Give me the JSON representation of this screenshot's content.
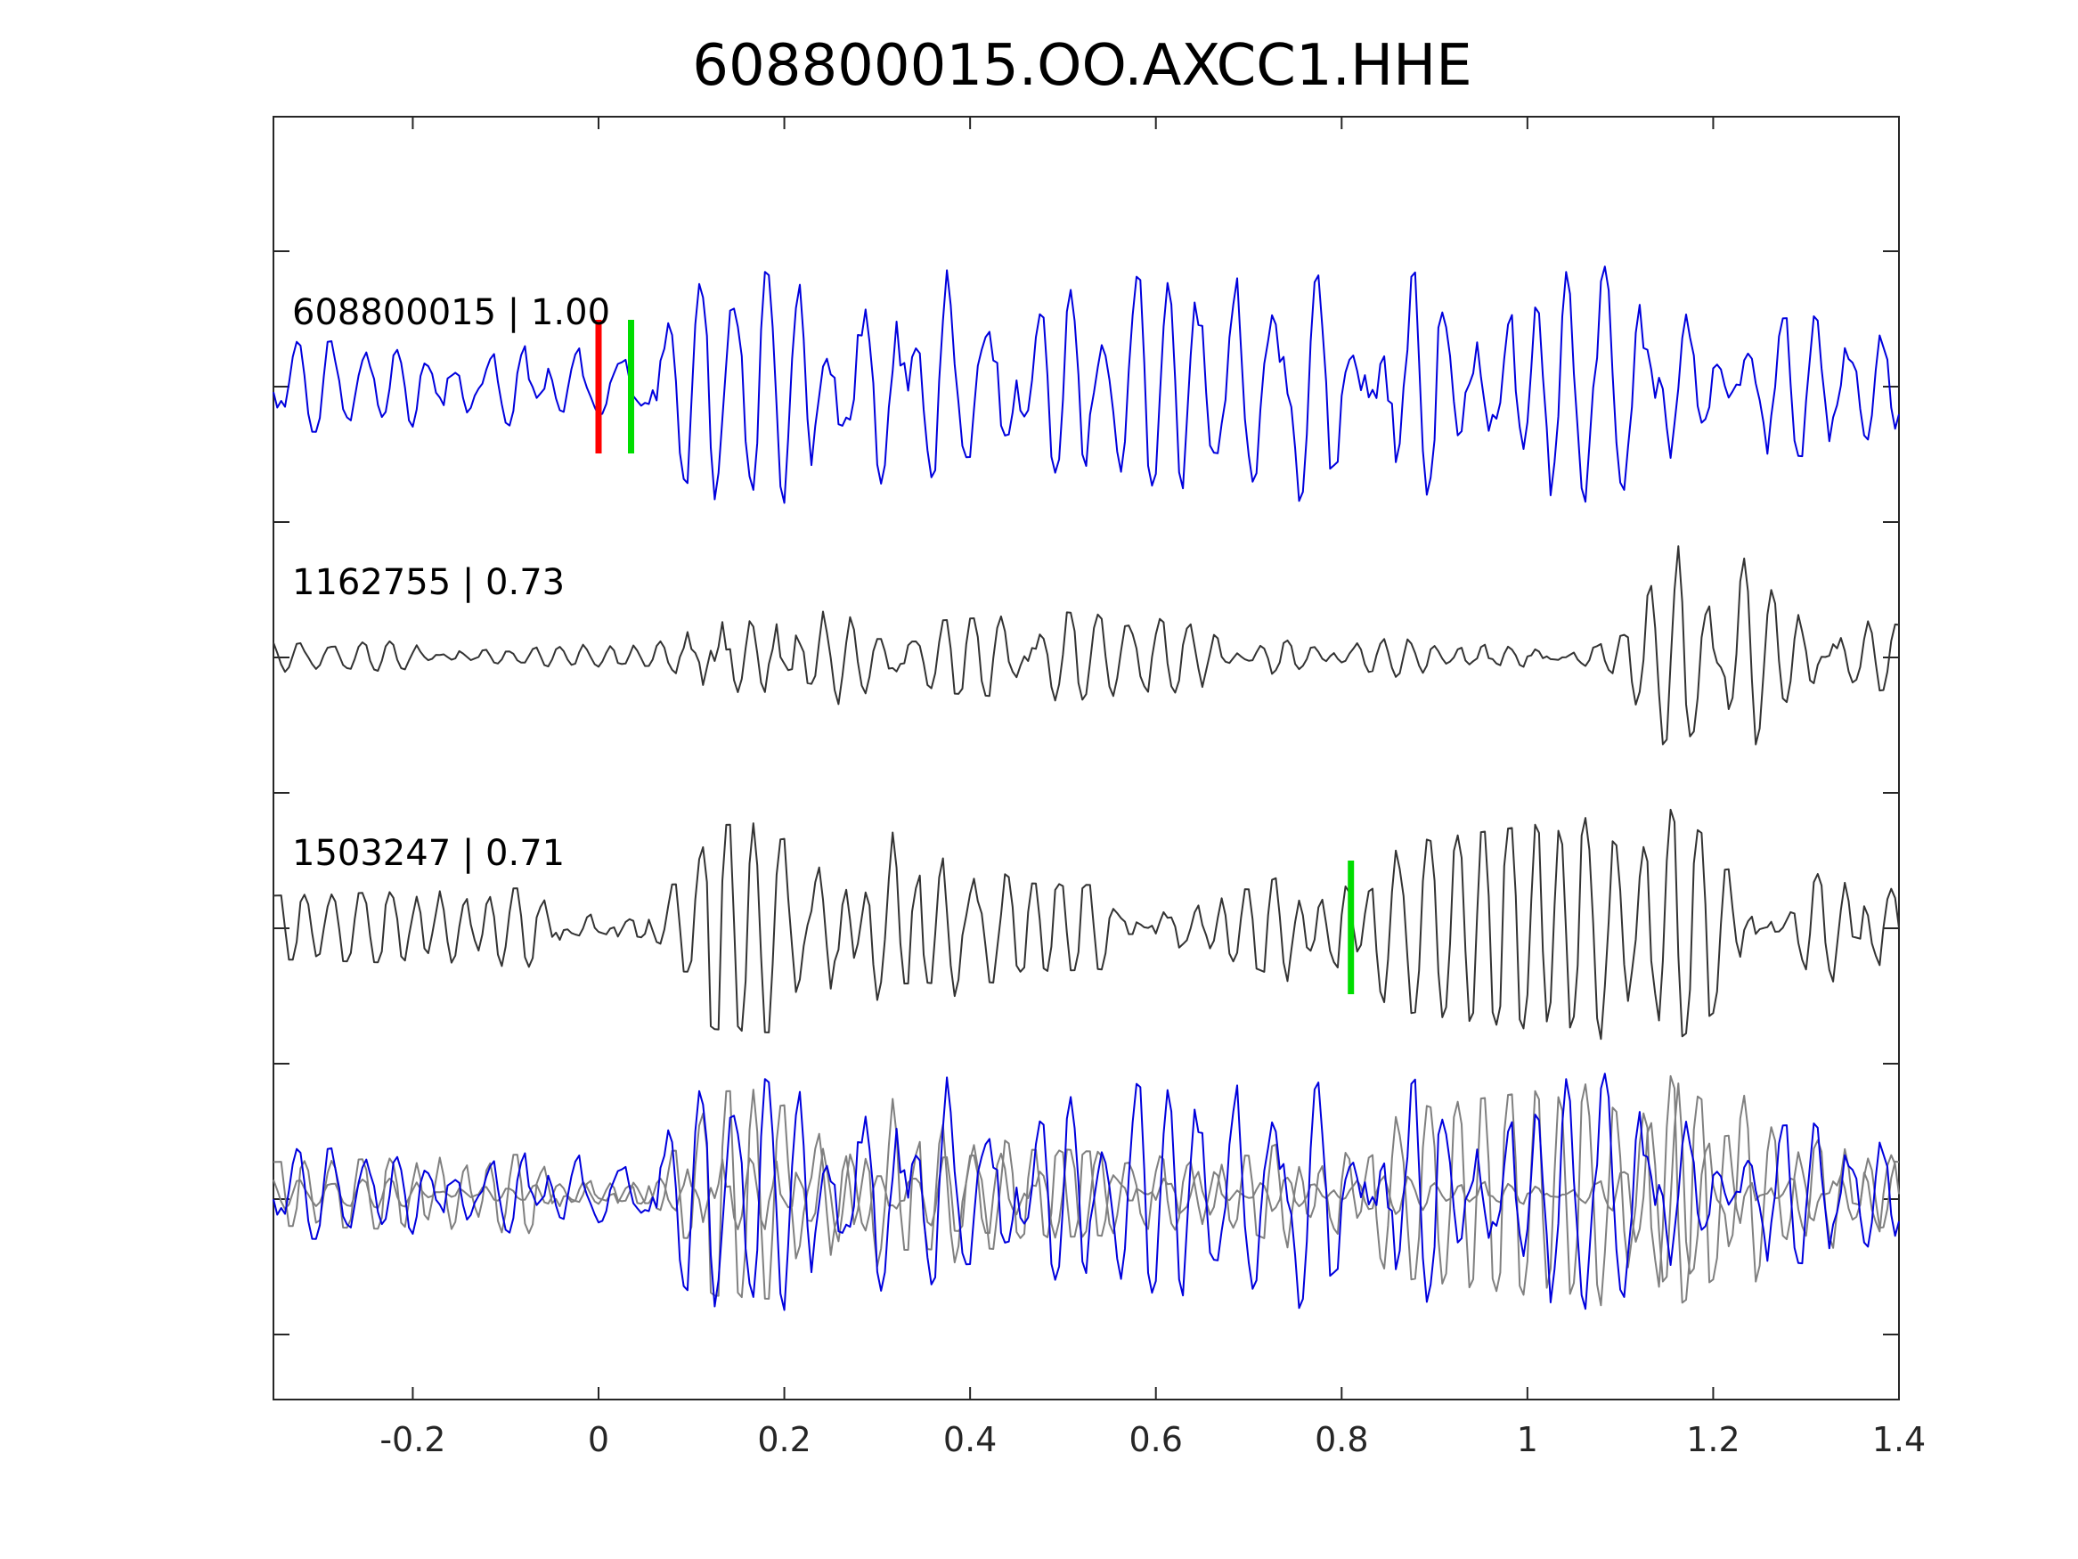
{
  "chart_data": {
    "type": "line",
    "title": "608800015.OO.AXCC1.HHE",
    "xlim": [
      -0.35,
      1.4
    ],
    "x_ticks": [
      "-0.2",
      "0",
      "0.2",
      "0.4",
      "0.6",
      "0.8",
      "1",
      "1.2",
      "1.4"
    ],
    "x_tick_values": [
      -0.2,
      0,
      0.2,
      0.4,
      0.6,
      0.8,
      1,
      1.2,
      1.4
    ],
    "y_ticks_unlabeled": 9,
    "grid": false,
    "colors": {
      "main": "#0000dd",
      "reference": "#333333",
      "overlay_gray": "#808080",
      "pick_red": "#ff0000",
      "pick_green": "#00dd00"
    },
    "traces": [
      {
        "label": "608800015 | 1.00",
        "name": "608800015",
        "correlation": 1.0,
        "color": "#0000dd",
        "seed": 11,
        "amplitude": 0.95,
        "envelope": [
          [
            -0.35,
            0.35
          ],
          [
            0.05,
            0.4
          ],
          [
            0.12,
            0.95
          ],
          [
            0.5,
            0.9
          ],
          [
            0.9,
            0.9
          ],
          [
            1.1,
            0.95
          ],
          [
            1.2,
            0.5
          ],
          [
            1.4,
            0.6
          ]
        ],
        "picks": [
          {
            "x": 0.0,
            "color": "#ff0000"
          },
          {
            "x": 0.035,
            "color": "#00dd00"
          }
        ]
      },
      {
        "label": "1162755 | 0.73",
        "name": "1162755",
        "correlation": 0.73,
        "color": "#333333",
        "seed": 23,
        "amplitude": 0.95,
        "envelope": [
          [
            -0.35,
            0.12
          ],
          [
            0.05,
            0.12
          ],
          [
            0.09,
            0.25
          ],
          [
            0.13,
            0.75
          ],
          [
            0.19,
            0.6
          ],
          [
            0.3,
            0.25
          ],
          [
            0.5,
            0.35
          ],
          [
            0.6,
            0.3
          ],
          [
            0.8,
            0.15
          ],
          [
            1.1,
            0.2
          ],
          [
            1.17,
            0.95
          ],
          [
            1.22,
            0.95
          ],
          [
            1.28,
            0.35
          ],
          [
            1.4,
            0.25
          ]
        ],
        "picks": []
      },
      {
        "label": "1503247 | 0.71",
        "name": "1503247",
        "correlation": 0.71,
        "color": "#333333",
        "seed": 37,
        "amplitude": 0.95,
        "envelope": [
          [
            -0.35,
            0.25
          ],
          [
            0.1,
            0.35
          ],
          [
            0.12,
            0.8
          ],
          [
            0.35,
            0.9
          ],
          [
            0.45,
            0.35
          ],
          [
            0.7,
            0.3
          ],
          [
            0.8,
            0.6
          ],
          [
            1.15,
            0.95
          ],
          [
            1.25,
            0.4
          ],
          [
            1.4,
            0.45
          ]
        ],
        "picks": [
          {
            "x": 0.81,
            "color": "#00dd00"
          }
        ]
      }
    ],
    "overlay": {
      "traces_from": [
        0,
        1,
        2
      ],
      "colors": [
        "#0000dd",
        "#808080",
        "#808080"
      ]
    }
  }
}
